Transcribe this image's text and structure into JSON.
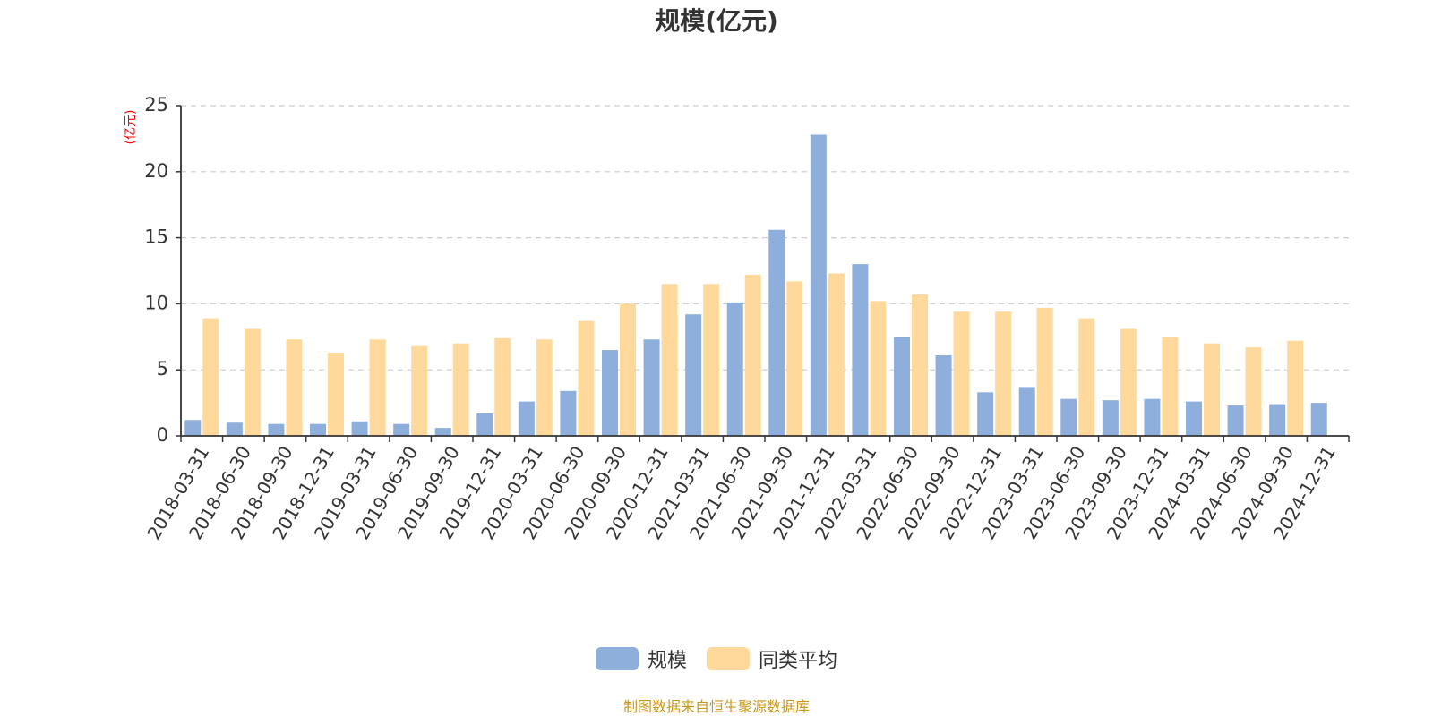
{
  "chart_data": {
    "type": "bar",
    "title": "规模(亿元)",
    "ylabel": "(亿元)",
    "xlabel": "",
    "ylim": [
      0,
      25
    ],
    "yticks": [
      0,
      5,
      10,
      15,
      20,
      25
    ],
    "grid": "horizontal dashed",
    "legend_position": "bottom-center",
    "categories": [
      "2018-03-31",
      "2018-06-30",
      "2018-09-30",
      "2018-12-31",
      "2019-03-31",
      "2019-06-30",
      "2019-09-30",
      "2019-12-31",
      "2020-03-31",
      "2020-06-30",
      "2020-09-30",
      "2020-12-31",
      "2021-03-31",
      "2021-06-30",
      "2021-09-30",
      "2021-12-31",
      "2022-03-31",
      "2022-06-30",
      "2022-09-30",
      "2022-12-31",
      "2023-03-31",
      "2023-06-30",
      "2023-09-30",
      "2023-12-31",
      "2024-03-31",
      "2024-06-30",
      "2024-09-30",
      "2024-12-31"
    ],
    "series": [
      {
        "name": "规模",
        "color": "#8eaedc",
        "values": [
          1.2,
          1.0,
          0.9,
          0.9,
          1.1,
          0.9,
          0.6,
          1.7,
          2.6,
          3.4,
          6.5,
          7.3,
          9.2,
          10.1,
          15.6,
          22.8,
          13.0,
          7.5,
          6.1,
          3.3,
          3.7,
          2.8,
          2.7,
          2.8,
          2.6,
          2.3,
          2.4,
          2.5
        ]
      },
      {
        "name": "同类平均",
        "color": "#fed99b",
        "values": [
          8.9,
          8.1,
          7.3,
          6.3,
          7.3,
          6.8,
          7.0,
          7.4,
          7.3,
          8.7,
          10.0,
          11.5,
          11.5,
          12.2,
          11.7,
          12.3,
          10.2,
          10.7,
          9.4,
          9.4,
          9.7,
          8.9,
          8.1,
          7.5,
          7.0,
          6.7,
          7.2,
          null
        ]
      }
    ]
  },
  "source_note": "制图数据来自恒生聚源数据库",
  "colors": {
    "ylabel": "#ff0000",
    "source_note": "#c8981a",
    "axis": "#333333",
    "grid": "#cccccc"
  }
}
